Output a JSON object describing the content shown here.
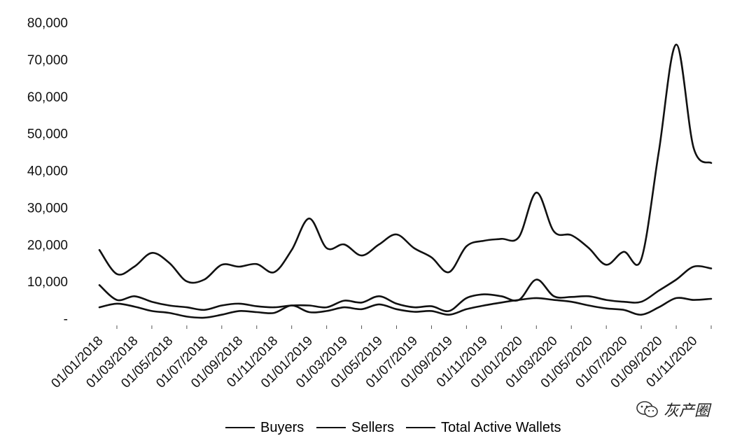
{
  "chart_data": {
    "type": "line",
    "title": "",
    "xlabel": "",
    "ylabel": "",
    "ylim": [
      0,
      80000
    ],
    "yticks": [
      0,
      10000,
      20000,
      30000,
      40000,
      50000,
      60000,
      70000,
      80000
    ],
    "ytick_labels": [
      "-",
      "10,000",
      "20,000",
      "30,000",
      "40,000",
      "50,000",
      "60,000",
      "70,000",
      "80,000"
    ],
    "xtick_labels": [
      "01/01/2018",
      "01/03/2018",
      "01/05/2018",
      "01/07/2018",
      "01/09/2018",
      "01/11/2018",
      "01/01/2019",
      "01/03/2019",
      "01/05/2019",
      "01/07/2019",
      "01/09/2019",
      "01/11/2019",
      "01/01/2020",
      "01/03/2020",
      "01/05/2020",
      "01/07/2020",
      "01/09/2020",
      "01/11/2020"
    ],
    "x": [
      "2018-01",
      "2018-02",
      "2018-03",
      "2018-04",
      "2018-05",
      "2018-06",
      "2018-07",
      "2018-08",
      "2018-09",
      "2018-10",
      "2018-11",
      "2018-12",
      "2019-01",
      "2019-02",
      "2019-03",
      "2019-04",
      "2019-05",
      "2019-06",
      "2019-07",
      "2019-08",
      "2019-09",
      "2019-10",
      "2019-11",
      "2019-12",
      "2020-01",
      "2020-02",
      "2020-03",
      "2020-04",
      "2020-05",
      "2020-06",
      "2020-07",
      "2020-08",
      "2020-09",
      "2020-10",
      "2020-11",
      "2020-12"
    ],
    "grid": false,
    "legend_position": "bottom",
    "series": [
      {
        "name": "Buyers",
        "values": [
          3000,
          4000,
          3200,
          2000,
          1500,
          500,
          200,
          1000,
          2000,
          1700,
          1500,
          3500,
          1700,
          2000,
          3000,
          2500,
          3800,
          2500,
          1800,
          2000,
          1000,
          2500,
          3500,
          4300,
          5000,
          5500,
          5000,
          4500,
          3500,
          2700,
          2300,
          1000,
          3000,
          5500,
          5000,
          5300
        ]
      },
      {
        "name": "Sellers",
        "values": [
          9000,
          5000,
          6000,
          4500,
          3500,
          3000,
          2300,
          3500,
          4000,
          3300,
          3000,
          3500,
          3500,
          3000,
          4800,
          4300,
          6000,
          4000,
          3000,
          3300,
          2000,
          5500,
          6500,
          6000,
          5000,
          10500,
          6000,
          5800,
          6000,
          5000,
          4500,
          4500,
          7500,
          10500,
          14000,
          13500
        ]
      },
      {
        "name": "Total Active Wallets",
        "values": [
          18500,
          12000,
          14000,
          17700,
          15000,
          10000,
          10500,
          14500,
          14000,
          14700,
          12500,
          18500,
          27000,
          19000,
          20000,
          17000,
          20000,
          22700,
          19000,
          16500,
          12500,
          19500,
          21000,
          21500,
          22000,
          34000,
          23500,
          22500,
          19000,
          14500,
          18000,
          16000,
          45000,
          74000,
          46000,
          42000
        ]
      }
    ]
  },
  "watermark": {
    "text": "灰产圈"
  }
}
